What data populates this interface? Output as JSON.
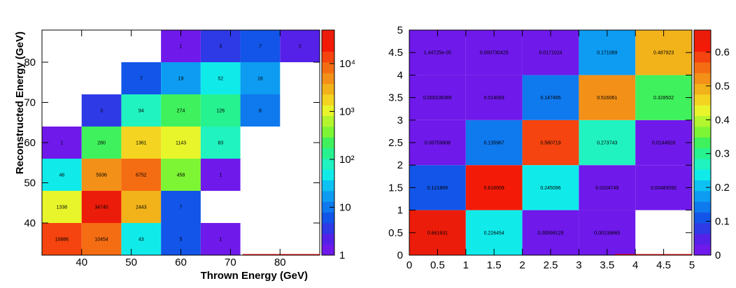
{
  "colors": {
    "palette": [
      "#6f19ea",
      "#5521e8",
      "#2e3ae6",
      "#1255e8",
      "#0f79ee",
      "#0d9cf2",
      "#0dc1f3",
      "#10ebea",
      "#20f2c0",
      "#27f290",
      "#3ff15c",
      "#7df535",
      "#b3f52e",
      "#e8f52b",
      "#f4d421",
      "#f2b21a",
      "#f39018",
      "#f56d13",
      "#f5440f",
      "#f31b08",
      "#ec1c0a"
    ]
  },
  "chart_data": [
    {
      "type": "heatmap",
      "title": "",
      "xlabel": "Thrown Energy (GeV)",
      "ylabel": "Reconstructed Energy (GeV)",
      "xlim": [
        32,
        88
      ],
      "ylim": [
        32,
        88
      ],
      "log_color_scale": true,
      "z_range": [
        1,
        50000
      ],
      "x_ticks": [
        "40",
        "50",
        "60",
        "70",
        "80"
      ],
      "y_ticks": [
        "40",
        "50",
        "60",
        "70",
        "80"
      ],
      "colorbar_ticks": [
        {
          "value": 1,
          "label": "1"
        },
        {
          "value": 10,
          "label": "10"
        },
        {
          "value": 100,
          "label": "10²"
        },
        {
          "value": 1000,
          "label": "10³"
        },
        {
          "value": 10000,
          "label": "10⁴"
        }
      ],
      "x_bin_edges": [
        32,
        40,
        48,
        56,
        64,
        72,
        80,
        88
      ],
      "y_bin_edges": [
        32,
        40,
        48,
        56,
        64,
        72,
        80,
        88
      ],
      "cells": [
        {
          "x": 0,
          "y": 0,
          "value": 10886,
          "label": "10886"
        },
        {
          "x": 1,
          "y": 0,
          "value": 10454,
          "label": "10454"
        },
        {
          "x": 2,
          "y": 0,
          "value": 43,
          "label": "43"
        },
        {
          "x": 3,
          "y": 0,
          "value": 5,
          "label": "5"
        },
        {
          "x": 4,
          "y": 0,
          "value": 1,
          "label": "1"
        },
        {
          "x": 0,
          "y": 1,
          "value": 1338,
          "label": "1338"
        },
        {
          "x": 1,
          "y": 1,
          "value": 34740,
          "label": "34740"
        },
        {
          "x": 2,
          "y": 1,
          "value": 2443,
          "label": "2443"
        },
        {
          "x": 3,
          "y": 1,
          "value": 7,
          "label": "7"
        },
        {
          "x": 0,
          "y": 2,
          "value": 46,
          "label": "46"
        },
        {
          "x": 1,
          "y": 2,
          "value": 5936,
          "label": "5936"
        },
        {
          "x": 2,
          "y": 2,
          "value": 6752,
          "label": "6752"
        },
        {
          "x": 3,
          "y": 2,
          "value": 458,
          "label": "458"
        },
        {
          "x": 4,
          "y": 2,
          "value": 1,
          "label": "1"
        },
        {
          "x": 0,
          "y": 3,
          "value": 1,
          "label": "1"
        },
        {
          "x": 1,
          "y": 3,
          "value": 280,
          "label": "280"
        },
        {
          "x": 2,
          "y": 3,
          "value": 1361,
          "label": "1361"
        },
        {
          "x": 3,
          "y": 3,
          "value": 1143,
          "label": "1143"
        },
        {
          "x": 4,
          "y": 3,
          "value": 83,
          "label": "83"
        },
        {
          "x": 1,
          "y": 4,
          "value": 3,
          "label": "3"
        },
        {
          "x": 2,
          "y": 4,
          "value": 94,
          "label": "94"
        },
        {
          "x": 3,
          "y": 4,
          "value": 274,
          "label": "274"
        },
        {
          "x": 4,
          "y": 4,
          "value": 126,
          "label": "126"
        },
        {
          "x": 5,
          "y": 4,
          "value": 8,
          "label": "8"
        },
        {
          "x": 2,
          "y": 5,
          "value": 7,
          "label": "7"
        },
        {
          "x": 3,
          "y": 5,
          "value": 19,
          "label": "19"
        },
        {
          "x": 4,
          "y": 5,
          "value": 52,
          "label": "52"
        },
        {
          "x": 5,
          "y": 5,
          "value": 16,
          "label": "16"
        },
        {
          "x": 3,
          "y": 6,
          "value": 1,
          "label": "1"
        },
        {
          "x": 4,
          "y": 6,
          "value": 3,
          "label": "3"
        },
        {
          "x": 5,
          "y": 6,
          "value": 7,
          "label": "7"
        },
        {
          "x": 6,
          "y": 6,
          "value": 2,
          "label": "2"
        }
      ]
    },
    {
      "type": "heatmap",
      "title": "",
      "xlabel": "",
      "ylabel": "",
      "xlim": [
        0,
        5
      ],
      "ylim": [
        0,
        5
      ],
      "log_color_scale": false,
      "z_range": [
        0,
        0.665
      ],
      "x_ticks": [
        "0",
        "0.5",
        "1",
        "1.5",
        "2",
        "2.5",
        "3",
        "3.5",
        "4",
        "4.5",
        "5"
      ],
      "y_ticks": [
        "0",
        "0.5",
        "1",
        "1.5",
        "2",
        "2.5",
        "3",
        "3.5",
        "4",
        "4.5",
        "5"
      ],
      "colorbar_ticks": [
        {
          "value": 0,
          "label": "0"
        },
        {
          "value": 0.1,
          "label": "0.1"
        },
        {
          "value": 0.2,
          "label": "0.2"
        },
        {
          "value": 0.3,
          "label": "0.3"
        },
        {
          "value": 0.4,
          "label": "0.4"
        },
        {
          "value": 0.5,
          "label": "0.5"
        },
        {
          "value": 0.6,
          "label": "0.6"
        }
      ],
      "x_bin_edges": [
        0,
        1,
        2,
        3,
        4,
        5
      ],
      "y_bin_edges": [
        0,
        1,
        2,
        3,
        4,
        5
      ],
      "cells": [
        {
          "x": 0,
          "y": 0,
          "value": 0.661631,
          "label": "0.661631"
        },
        {
          "x": 1,
          "y": 0,
          "value": 0.226454,
          "label": "0.226454"
        },
        {
          "x": 2,
          "y": 0,
          "value": 0.00599129,
          "label": "0.00599129"
        },
        {
          "x": 3,
          "y": 0,
          "value": 0.00139665,
          "label": "0.00139665"
        },
        {
          "x": 0,
          "y": 1,
          "value": 0.121869,
          "label": "0.121869"
        },
        {
          "x": 1,
          "y": 1,
          "value": 0.616009,
          "label": "0.616009"
        },
        {
          "x": 2,
          "y": 1,
          "value": 0.245096,
          "label": "0.245096"
        },
        {
          "x": 3,
          "y": 1,
          "value": 0.0104749,
          "label": "0.0104749"
        },
        {
          "x": 4,
          "y": 1,
          "value": 0.00483092,
          "label": "0.00483092"
        },
        {
          "x": 0,
          "y": 2,
          "value": 0.00759808,
          "label": "0.00759808"
        },
        {
          "x": 1,
          "y": 2,
          "value": 0.135967,
          "label": "0.135967"
        },
        {
          "x": 2,
          "y": 2,
          "value": 0.580719,
          "label": "0.580719"
        },
        {
          "x": 3,
          "y": 2,
          "value": 0.273743,
          "label": "0.273743"
        },
        {
          "x": 4,
          "y": 2,
          "value": 0.0144928,
          "label": "0.0144928"
        },
        {
          "x": 0,
          "y": 3,
          "value": 0.000236365,
          "label": "0.000236365"
        },
        {
          "x": 1,
          "y": 3,
          "value": 0.014093,
          "label": "0.014093"
        },
        {
          "x": 2,
          "y": 3,
          "value": 0.147495,
          "label": "0.147495"
        },
        {
          "x": 3,
          "y": 3,
          "value": 0.516061,
          "label": "0.516061"
        },
        {
          "x": 4,
          "y": 3,
          "value": 0.328502,
          "label": "0.328502"
        },
        {
          "x": 0,
          "y": 4,
          "value": 1.44725e-05,
          "label": "1.44725e-05"
        },
        {
          "x": 1,
          "y": 4,
          "value": 0.000730429,
          "label": "0.000730429"
        },
        {
          "x": 2,
          "y": 4,
          "value": 0.0171024,
          "label": "0.0171024"
        },
        {
          "x": 3,
          "y": 4,
          "value": 0.171089,
          "label": "0.171089"
        },
        {
          "x": 4,
          "y": 4,
          "value": 0.487923,
          "label": "0.487923"
        }
      ]
    }
  ]
}
